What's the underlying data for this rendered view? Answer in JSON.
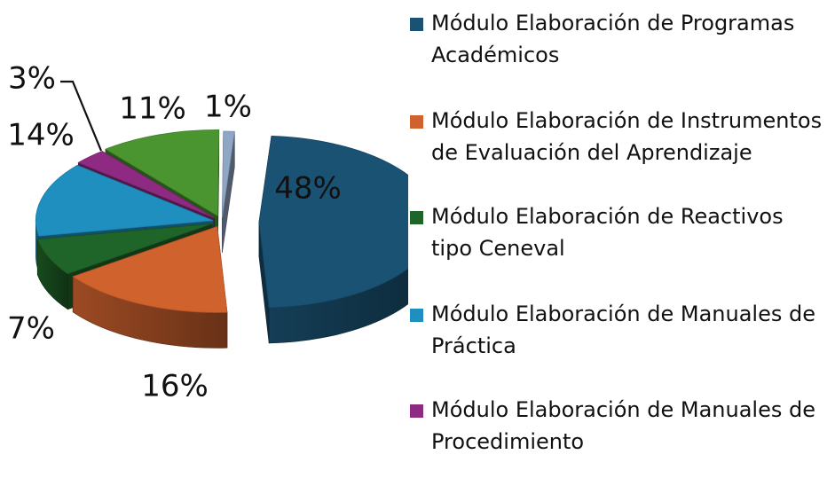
{
  "chart_data": {
    "type": "pie",
    "style": "3d-exploded",
    "legend_position": "right",
    "slices": [
      {
        "name": "Módulo Elaboración de Programas Académicos",
        "value": 48,
        "label": "48%",
        "color": "#1A5273"
      },
      {
        "name": "Módulo Elaboración de Instrumentos de Evaluación del Aprendizaje",
        "value": 16,
        "label": "16%",
        "color": "#D0622E"
      },
      {
        "name": "Módulo Elaboración de Reactivos tipo Ceneval",
        "value": 7,
        "label": "7%",
        "color": "#1F6428"
      },
      {
        "name": "Módulo Elaboración de Manuales de Práctica",
        "value": 14,
        "label": "14%",
        "color": "#1F8FC0"
      },
      {
        "name": "Módulo Elaboración de Manuales de Procedimiento",
        "value": 3,
        "label": "3%",
        "color": "#8E2A82"
      },
      {
        "name": "",
        "value": 11,
        "label": "11%",
        "color": "#4A9530"
      },
      {
        "name": "",
        "value": 1,
        "label": "1%",
        "color": "#8FA6C4"
      }
    ]
  }
}
